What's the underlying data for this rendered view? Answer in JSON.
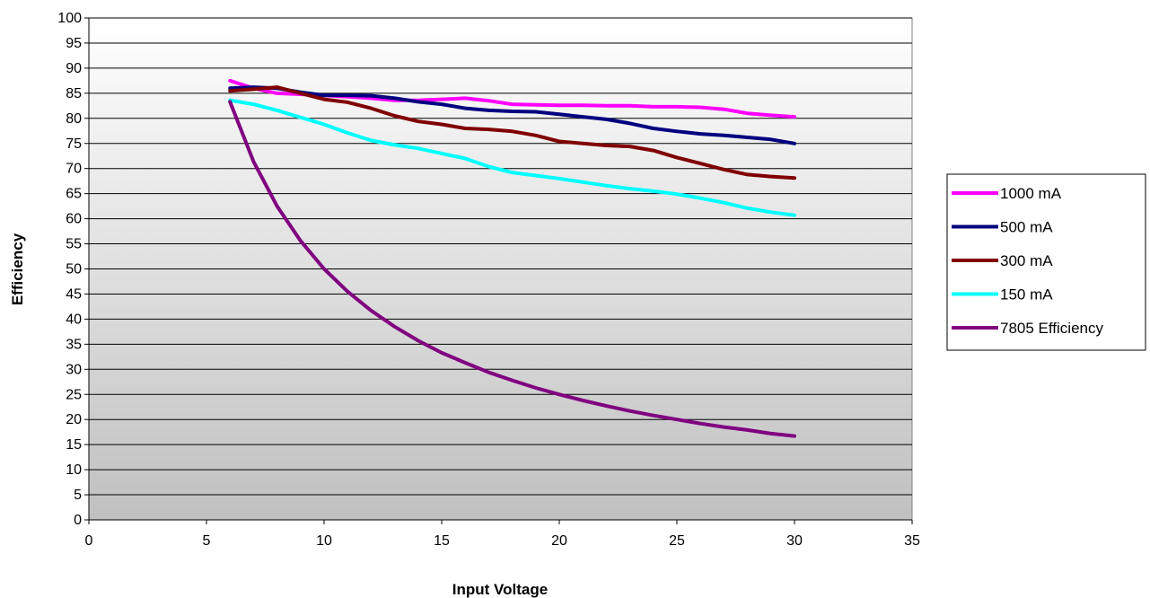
{
  "chart_data": {
    "type": "line",
    "title": "",
    "xlabel": "Input Voltage",
    "ylabel": "Efficiency",
    "xlim": [
      0,
      35
    ],
    "ylim": [
      0,
      100
    ],
    "x_ticks": [
      0,
      5,
      10,
      15,
      20,
      25,
      30,
      35
    ],
    "y_ticks": [
      0,
      5,
      10,
      15,
      20,
      25,
      30,
      35,
      40,
      45,
      50,
      55,
      60,
      65,
      70,
      75,
      80,
      85,
      90,
      95,
      100
    ],
    "grid": "horizontal",
    "legend_position": "right",
    "series": [
      {
        "name": "1000 mA",
        "color": "#FF00FF",
        "x": [
          6,
          7,
          8,
          9,
          10,
          11,
          12,
          13,
          14,
          15,
          16,
          17,
          18,
          19,
          20,
          21,
          22,
          23,
          24,
          25,
          26,
          27,
          28,
          29,
          30
        ],
        "y": [
          87.5,
          86,
          85,
          84.8,
          84.6,
          84.3,
          84,
          83.6,
          83.6,
          83.8,
          84,
          83.5,
          82.8,
          82.7,
          82.6,
          82.6,
          82.5,
          82.5,
          82.3,
          82.3,
          82.2,
          81.8,
          81,
          80.6,
          80.3
        ]
      },
      {
        "name": "500 mA",
        "color": "#000080",
        "x": [
          6,
          7,
          8,
          9,
          10,
          11,
          12,
          13,
          14,
          15,
          16,
          17,
          18,
          19,
          20,
          21,
          22,
          23,
          24,
          25,
          26,
          27,
          28,
          29,
          30
        ],
        "y": [
          86,
          86.2,
          86,
          85.2,
          84.6,
          84.6,
          84.5,
          84,
          83.3,
          82.8,
          82,
          81.6,
          81.4,
          81.3,
          80.8,
          80.3,
          79.8,
          79,
          78,
          77.4,
          76.9,
          76.6,
          76.2,
          75.8,
          75
        ]
      },
      {
        "name": "300 mA",
        "color": "#800000",
        "x": [
          6,
          7,
          8,
          9,
          10,
          11,
          12,
          13,
          14,
          15,
          16,
          17,
          18,
          19,
          20,
          21,
          22,
          23,
          24,
          25,
          26,
          27,
          28,
          29,
          30
        ],
        "y": [
          85.5,
          85.8,
          86.2,
          85,
          83.8,
          83.2,
          82,
          80.5,
          79.4,
          78.8,
          78,
          77.8,
          77.4,
          76.6,
          75.4,
          75,
          74.6,
          74.4,
          73.6,
          72.2,
          71,
          69.8,
          68.8,
          68.4,
          68.1
        ]
      },
      {
        "name": "150 mA",
        "color": "#00FFFF",
        "x": [
          6,
          7,
          8,
          9,
          10,
          11,
          12,
          13,
          14,
          15,
          16,
          17,
          18,
          19,
          20,
          21,
          22,
          23,
          24,
          25,
          26,
          27,
          28,
          29,
          30
        ],
        "y": [
          83.6,
          82.8,
          81.6,
          80.2,
          78.8,
          77.1,
          75.6,
          74.7,
          74,
          73,
          72,
          70.4,
          69.2,
          68.6,
          68,
          67.3,
          66.6,
          66,
          65.5,
          64.9,
          64.1,
          63.2,
          62.1,
          61.3,
          60.7
        ]
      },
      {
        "name": "7805 Efficiency",
        "color": "#800080",
        "x": [
          6,
          7,
          8,
          9,
          10,
          11,
          12,
          13,
          14,
          15,
          16,
          17,
          18,
          19,
          20,
          21,
          22,
          23,
          24,
          25,
          26,
          27,
          28,
          29,
          30
        ],
        "y": [
          83.3,
          71.4,
          62.5,
          55.6,
          50,
          45.5,
          41.7,
          38.5,
          35.7,
          33.3,
          31.3,
          29.4,
          27.8,
          26.3,
          25,
          23.8,
          22.7,
          21.7,
          20.8,
          20,
          19.2,
          18.5,
          17.9,
          17.2,
          16.7
        ]
      }
    ]
  }
}
